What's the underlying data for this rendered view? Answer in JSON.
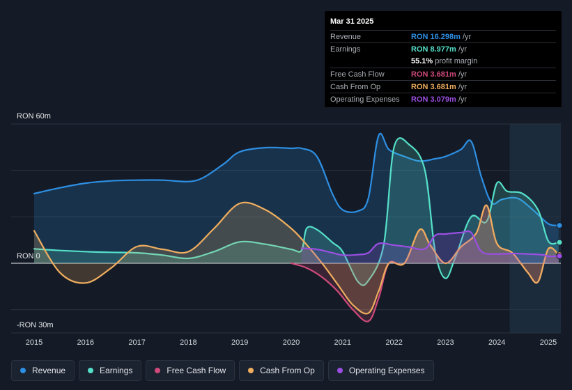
{
  "chart_data": {
    "type": "area",
    "currency": "RON",
    "y_axis_labels": {
      "top": "RON 60m",
      "zero": "RON 0",
      "bottom": "-RON 30m"
    },
    "ylim": [
      -30,
      60
    ],
    "x_ticks": [
      "2015",
      "2016",
      "2017",
      "2018",
      "2019",
      "2020",
      "2021",
      "2022",
      "2023",
      "2024",
      "2025"
    ],
    "series": [
      {
        "name": "Revenue",
        "color": "#2d8fe3",
        "points": [
          [
            2015.0,
            30
          ],
          [
            2015.5,
            32.5
          ],
          [
            2016.0,
            34.5
          ],
          [
            2016.5,
            35.5
          ],
          [
            2017.0,
            35.8
          ],
          [
            2017.5,
            35.8
          ],
          [
            2018.0,
            35.2
          ],
          [
            2018.3,
            37
          ],
          [
            2018.7,
            43
          ],
          [
            2019.0,
            48
          ],
          [
            2019.5,
            49.8
          ],
          [
            2020.0,
            49.5
          ],
          [
            2020.2,
            49.5
          ],
          [
            2020.5,
            46
          ],
          [
            2020.8,
            30
          ],
          [
            2021.0,
            23
          ],
          [
            2021.3,
            22.5
          ],
          [
            2021.5,
            28
          ],
          [
            2021.7,
            55
          ],
          [
            2021.9,
            49
          ],
          [
            2022.2,
            46
          ],
          [
            2022.5,
            44
          ],
          [
            2022.8,
            45
          ],
          [
            2023.0,
            46
          ],
          [
            2023.3,
            49
          ],
          [
            2023.5,
            52.5
          ],
          [
            2023.7,
            37
          ],
          [
            2023.9,
            26
          ],
          [
            2024.1,
            27.5
          ],
          [
            2024.4,
            28
          ],
          [
            2024.7,
            23
          ],
          [
            2025.0,
            17
          ],
          [
            2025.2,
            16.3
          ]
        ]
      },
      {
        "name": "Earnings",
        "color": "#55e0c9",
        "points": [
          [
            2015.0,
            6.2
          ],
          [
            2015.5,
            5.5
          ],
          [
            2016.0,
            5
          ],
          [
            2016.5,
            4.7
          ],
          [
            2017.0,
            4.5
          ],
          [
            2017.5,
            3.5
          ],
          [
            2018.0,
            2.1
          ],
          [
            2018.5,
            5
          ],
          [
            2019.0,
            9.2
          ],
          [
            2019.5,
            8.2
          ],
          [
            2020.0,
            6
          ],
          [
            2020.2,
            5.5
          ],
          [
            2020.3,
            15
          ],
          [
            2020.5,
            14.5
          ],
          [
            2020.8,
            9
          ],
          [
            2021.0,
            5
          ],
          [
            2021.3,
            -8
          ],
          [
            2021.5,
            -7.5
          ],
          [
            2021.8,
            8
          ],
          [
            2022.0,
            50
          ],
          [
            2022.3,
            51
          ],
          [
            2022.6,
            40
          ],
          [
            2022.8,
            5
          ],
          [
            2023.0,
            -6.5
          ],
          [
            2023.2,
            3
          ],
          [
            2023.5,
            20
          ],
          [
            2023.8,
            18
          ],
          [
            2024.0,
            34.5
          ],
          [
            2024.2,
            31
          ],
          [
            2024.5,
            30
          ],
          [
            2024.8,
            23
          ],
          [
            2025.0,
            9.5
          ],
          [
            2025.2,
            9
          ]
        ]
      },
      {
        "name": "Free Cash Flow",
        "color": "#cf4a7a",
        "points": [
          [
            2020.0,
            0
          ],
          [
            2020.3,
            -2
          ],
          [
            2020.6,
            -6
          ],
          [
            2020.9,
            -12
          ],
          [
            2021.2,
            -20
          ],
          [
            2021.5,
            -25
          ],
          [
            2021.7,
            -15
          ],
          [
            2021.9,
            0
          ],
          [
            2022.2,
            0
          ],
          [
            2022.5,
            14.5
          ],
          [
            2022.7,
            8
          ],
          [
            2023.0,
            0
          ],
          [
            2023.3,
            7
          ],
          [
            2023.6,
            13
          ],
          [
            2023.8,
            25
          ],
          [
            2024.0,
            8.5
          ],
          [
            2024.3,
            4.5
          ],
          [
            2024.6,
            -4
          ],
          [
            2024.8,
            -8
          ],
          [
            2025.0,
            6.2
          ],
          [
            2025.2,
            3.7
          ]
        ]
      },
      {
        "name": "Cash From Op",
        "color": "#efae5e",
        "points": [
          [
            2015.0,
            14
          ],
          [
            2015.5,
            -4
          ],
          [
            2016.0,
            -8.5
          ],
          [
            2016.5,
            -2
          ],
          [
            2017.0,
            7.2
          ],
          [
            2017.5,
            6
          ],
          [
            2018.0,
            5
          ],
          [
            2018.5,
            15
          ],
          [
            2019.0,
            25.8
          ],
          [
            2019.5,
            23
          ],
          [
            2020.0,
            15
          ],
          [
            2020.3,
            8
          ],
          [
            2020.6,
            0
          ],
          [
            2020.9,
            -9
          ],
          [
            2021.2,
            -18
          ],
          [
            2021.5,
            -21.5
          ],
          [
            2021.7,
            -12
          ],
          [
            2021.9,
            0
          ],
          [
            2022.2,
            0
          ],
          [
            2022.5,
            14.5
          ],
          [
            2022.7,
            8
          ],
          [
            2023.0,
            0
          ],
          [
            2023.3,
            7
          ],
          [
            2023.6,
            13
          ],
          [
            2023.8,
            25
          ],
          [
            2024.0,
            8.5
          ],
          [
            2024.3,
            4.5
          ],
          [
            2024.6,
            -4
          ],
          [
            2024.8,
            -8
          ],
          [
            2025.0,
            6.2
          ],
          [
            2025.2,
            3.7
          ]
        ]
      },
      {
        "name": "Operating Expenses",
        "color": "#9b4fe2",
        "points": [
          [
            2020.2,
            6.5
          ],
          [
            2020.5,
            6
          ],
          [
            2020.8,
            4.5
          ],
          [
            2021.0,
            3.5
          ],
          [
            2021.3,
            3.7
          ],
          [
            2021.5,
            4.5
          ],
          [
            2021.7,
            8.5
          ],
          [
            2022.0,
            7.8
          ],
          [
            2022.3,
            7
          ],
          [
            2022.6,
            6.2
          ],
          [
            2022.8,
            12
          ],
          [
            2023.0,
            12.6
          ],
          [
            2023.3,
            13.2
          ],
          [
            2023.5,
            13.2
          ],
          [
            2023.7,
            5
          ],
          [
            2024.0,
            4
          ],
          [
            2024.3,
            4.2
          ],
          [
            2024.6,
            4
          ],
          [
            2024.9,
            3.6
          ],
          [
            2025.0,
            3
          ],
          [
            2025.2,
            3.1
          ]
        ]
      }
    ],
    "highlight_period_start": 2024.25
  },
  "tooltip": {
    "date": "Mar 31 2025",
    "rows": [
      {
        "label": "Revenue",
        "value": "RON 16.298m",
        "unit": "/yr",
        "color": "#2d8fe3"
      },
      {
        "label": "Earnings",
        "value": "RON 8.977m",
        "unit": "/yr",
        "color": "#55e0c9"
      },
      {
        "label": "",
        "value": "55.1%",
        "unit": "profit margin",
        "color": "#ffffff"
      },
      {
        "label": "Free Cash Flow",
        "value": "RON 3.681m",
        "unit": "/yr",
        "color": "#cf4a7a"
      },
      {
        "label": "Cash From Op",
        "value": "RON 3.681m",
        "unit": "/yr",
        "color": "#efae5e"
      },
      {
        "label": "Operating Expenses",
        "value": "RON 3.079m",
        "unit": "/yr",
        "color": "#9b4fe2"
      }
    ]
  },
  "legend": [
    {
      "label": "Revenue",
      "color": "#2d8fe3"
    },
    {
      "label": "Earnings",
      "color": "#55e0c9"
    },
    {
      "label": "Free Cash Flow",
      "color": "#cf4a7a"
    },
    {
      "label": "Cash From Op",
      "color": "#efae5e"
    },
    {
      "label": "Operating Expenses",
      "color": "#9b4fe2"
    }
  ]
}
